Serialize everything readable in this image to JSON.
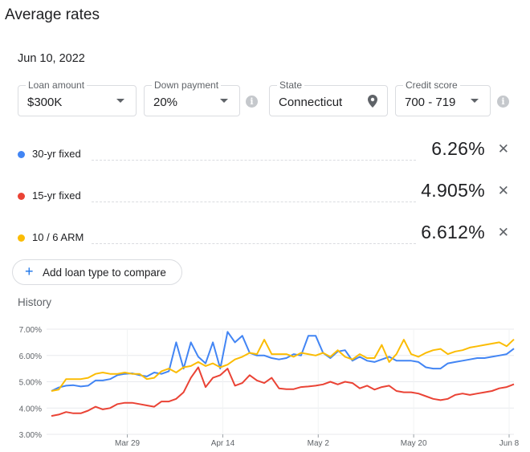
{
  "page": {
    "title": "Average rates",
    "date": "Jun 10, 2022"
  },
  "filters": {
    "loan_amount": {
      "label": "Loan amount",
      "value": "$300K"
    },
    "down_payment": {
      "label": "Down payment",
      "value": "20%"
    },
    "state": {
      "label": "State",
      "value": "Connecticut"
    },
    "credit_score": {
      "label": "Credit score",
      "value": "700 - 719"
    },
    "info_glyph": "i"
  },
  "rates": [
    {
      "label": "30-yr fixed",
      "value": "6.26%",
      "color": "#4285f4"
    },
    {
      "label": "15-yr fixed",
      "value": "4.905%",
      "color": "#ea4335"
    },
    {
      "label": "10 / 6 ARM",
      "value": "6.612%",
      "color": "#fbbc04"
    }
  ],
  "remove_glyph": "✕",
  "add_button": {
    "plus": "+",
    "label": "Add loan type to compare"
  },
  "history_label": "History",
  "chart_data": {
    "type": "line",
    "y_tick_labels": [
      "7.00%",
      "6.00%",
      "5.00%",
      "4.00%",
      "3.00%"
    ],
    "ylim": [
      3,
      7
    ],
    "x_tick_labels": [
      "Mar 29",
      "Apr 14",
      "May 2",
      "May 20",
      "Jun 8"
    ],
    "grid": true,
    "series": [
      {
        "color": "#4285f4",
        "values": [
          4.65,
          4.78,
          4.85,
          4.87,
          4.82,
          4.85,
          5.05,
          5.05,
          5.1,
          5.25,
          5.3,
          5.32,
          5.25,
          5.2,
          5.35,
          5.3,
          5.4,
          6.5,
          5.5,
          6.5,
          5.95,
          5.7,
          6.5,
          5.5,
          6.9,
          6.5,
          6.75,
          6.1,
          6.0,
          6.0,
          5.9,
          5.85,
          5.9,
          6.05,
          6.0,
          6.75,
          6.75,
          6.1,
          5.9,
          6.15,
          6.2,
          5.8,
          5.95,
          5.8,
          5.75,
          5.85,
          5.95,
          5.8,
          5.8,
          5.8,
          5.75,
          5.55,
          5.5,
          5.5,
          5.7,
          5.75,
          5.8,
          5.85,
          5.9,
          5.9,
          5.95,
          6.0,
          6.05,
          6.26
        ]
      },
      {
        "color": "#ea4335",
        "values": [
          3.7,
          3.75,
          3.85,
          3.8,
          3.8,
          3.9,
          4.05,
          3.95,
          4.0,
          4.15,
          4.2,
          4.2,
          4.15,
          4.1,
          4.05,
          4.25,
          4.25,
          4.35,
          4.6,
          5.15,
          5.55,
          4.8,
          5.15,
          5.25,
          5.5,
          4.85,
          4.95,
          5.25,
          5.05,
          4.95,
          5.15,
          4.75,
          4.72,
          4.72,
          4.8,
          4.82,
          4.85,
          4.9,
          5.0,
          4.9,
          5.0,
          4.95,
          4.75,
          4.85,
          4.7,
          4.8,
          4.85,
          4.65,
          4.6,
          4.6,
          4.55,
          4.45,
          4.35,
          4.3,
          4.35,
          4.5,
          4.55,
          4.5,
          4.55,
          4.6,
          4.65,
          4.75,
          4.8,
          4.905
        ]
      },
      {
        "color": "#fbbc04",
        "values": [
          4.65,
          4.7,
          5.1,
          5.1,
          5.1,
          5.15,
          5.3,
          5.35,
          5.3,
          5.3,
          5.35,
          5.3,
          5.3,
          5.1,
          5.15,
          5.4,
          5.5,
          5.35,
          5.55,
          5.6,
          5.75,
          5.6,
          5.7,
          5.55,
          5.65,
          5.85,
          5.95,
          6.1,
          6.05,
          6.6,
          6.05,
          6.05,
          6.05,
          5.95,
          6.1,
          6.05,
          6.0,
          6.1,
          5.95,
          6.2,
          5.95,
          5.85,
          6.05,
          5.9,
          5.9,
          6.4,
          5.75,
          6.05,
          6.6,
          6.05,
          5.95,
          6.1,
          6.2,
          6.25,
          6.05,
          6.15,
          6.2,
          6.3,
          6.35,
          6.4,
          6.45,
          6.5,
          6.35,
          6.612
        ]
      }
    ]
  }
}
